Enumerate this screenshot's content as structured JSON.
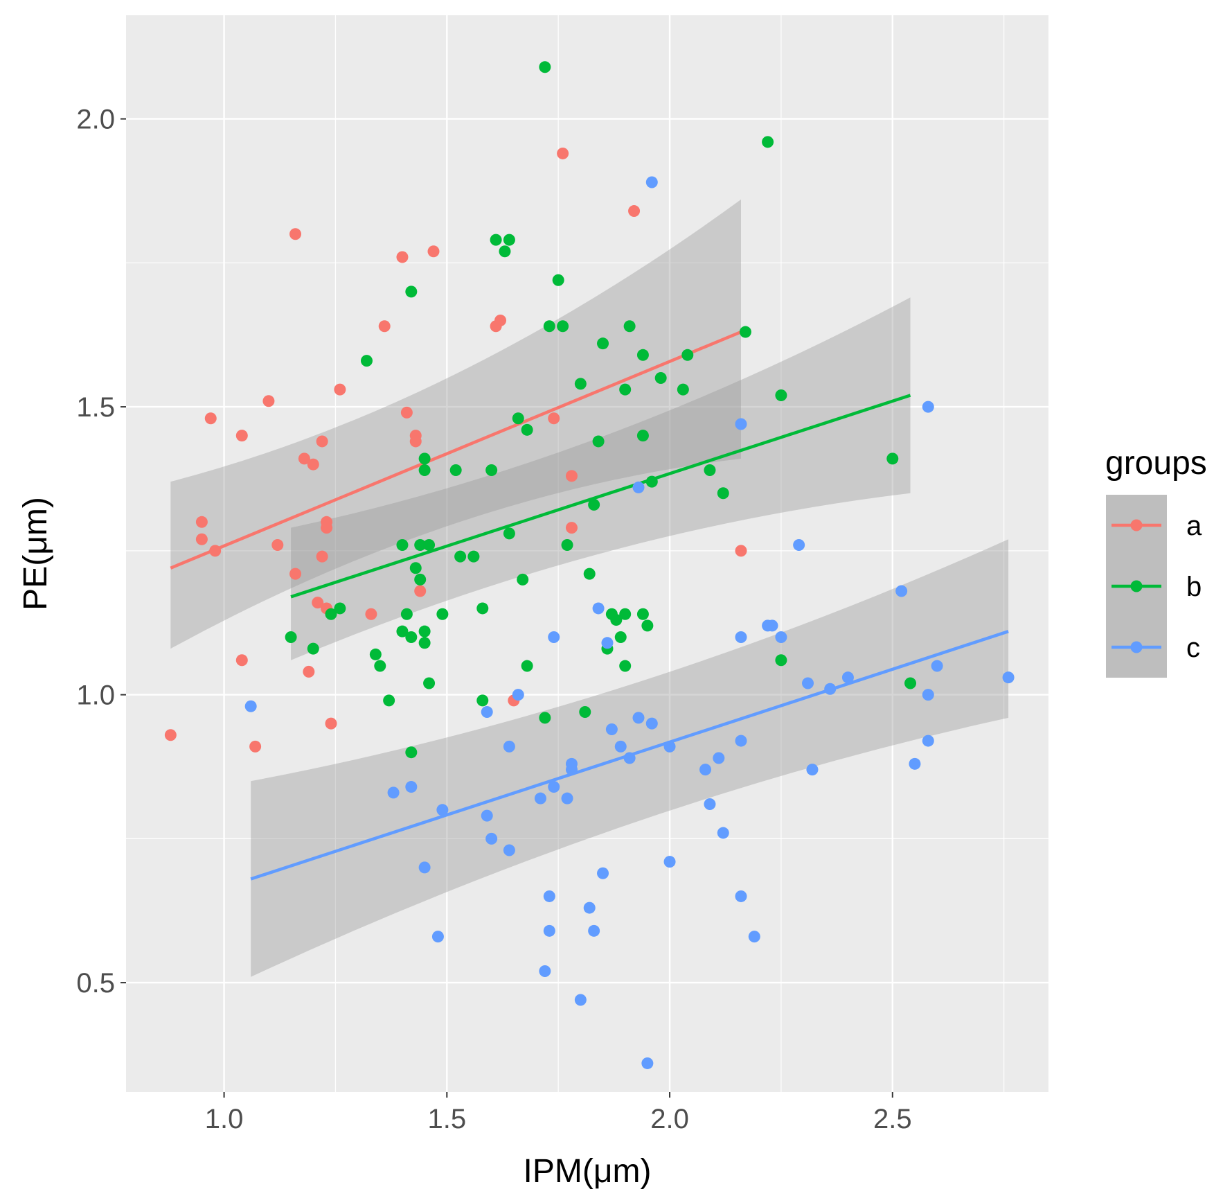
{
  "chart_data": {
    "type": "scatter",
    "title": "",
    "xlabel": "IPM(μm)",
    "ylabel": "PE(μm)",
    "xlim": [
      0.78,
      2.85
    ],
    "ylim": [
      0.31,
      2.18
    ],
    "xticks": [
      1.0,
      1.5,
      2.0,
      2.5
    ],
    "xtick_labels": [
      "1.0",
      "1.5",
      "2.0",
      "2.5"
    ],
    "yticks": [
      0.5,
      1.0,
      1.5,
      2.0
    ],
    "ytick_labels": [
      "0.5",
      "1.0",
      "1.5",
      "2.0"
    ],
    "grid": true,
    "legend": {
      "title": "groups",
      "position": "right"
    },
    "series": [
      {
        "name": "a",
        "color": "#F8766D",
        "points": [
          [
            0.88,
            0.93
          ],
          [
            0.95,
            1.3
          ],
          [
            0.95,
            1.27
          ],
          [
            0.97,
            1.48
          ],
          [
            0.98,
            1.25
          ],
          [
            1.04,
            1.45
          ],
          [
            1.04,
            1.06
          ],
          [
            1.07,
            0.91
          ],
          [
            1.1,
            1.51
          ],
          [
            1.12,
            1.26
          ],
          [
            1.16,
            1.8
          ],
          [
            1.16,
            1.21
          ],
          [
            1.18,
            1.41
          ],
          [
            1.19,
            1.04
          ],
          [
            1.2,
            1.4
          ],
          [
            1.21,
            1.16
          ],
          [
            1.22,
            1.44
          ],
          [
            1.22,
            1.24
          ],
          [
            1.23,
            1.3
          ],
          [
            1.23,
            1.29
          ],
          [
            1.23,
            1.15
          ],
          [
            1.24,
            0.95
          ],
          [
            1.26,
            1.53
          ],
          [
            1.33,
            1.14
          ],
          [
            1.36,
            1.64
          ],
          [
            1.4,
            1.76
          ],
          [
            1.41,
            1.49
          ],
          [
            1.43,
            1.45
          ],
          [
            1.43,
            1.44
          ],
          [
            1.44,
            1.18
          ],
          [
            1.47,
            1.77
          ],
          [
            1.61,
            1.64
          ],
          [
            1.62,
            1.65
          ],
          [
            1.65,
            0.99
          ],
          [
            1.74,
            1.48
          ],
          [
            1.76,
            1.94
          ],
          [
            1.78,
            1.38
          ],
          [
            1.78,
            1.29
          ],
          [
            1.92,
            1.84
          ],
          [
            2.16,
            1.25
          ]
        ],
        "fit": {
          "x": [
            0.88,
            2.16
          ],
          "y": [
            1.22,
            1.63
          ],
          "ci_lower": [
            1.08,
            1.41
          ],
          "ci_upper": [
            1.37,
            1.86
          ]
        }
      },
      {
        "name": "b",
        "color": "#00BA38",
        "points": [
          [
            1.15,
            1.1
          ],
          [
            1.2,
            1.08
          ],
          [
            1.24,
            1.14
          ],
          [
            1.26,
            1.15
          ],
          [
            1.32,
            1.58
          ],
          [
            1.34,
            1.07
          ],
          [
            1.35,
            1.05
          ],
          [
            1.37,
            0.99
          ],
          [
            1.4,
            1.26
          ],
          [
            1.4,
            1.11
          ],
          [
            1.41,
            1.14
          ],
          [
            1.42,
            1.7
          ],
          [
            1.42,
            1.1
          ],
          [
            1.42,
            0.9
          ],
          [
            1.43,
            1.22
          ],
          [
            1.44,
            1.26
          ],
          [
            1.44,
            1.2
          ],
          [
            1.45,
            1.41
          ],
          [
            1.45,
            1.39
          ],
          [
            1.45,
            1.11
          ],
          [
            1.45,
            1.09
          ],
          [
            1.46,
            1.26
          ],
          [
            1.46,
            1.02
          ],
          [
            1.49,
            1.14
          ],
          [
            1.52,
            1.39
          ],
          [
            1.53,
            1.24
          ],
          [
            1.56,
            1.24
          ],
          [
            1.58,
            1.15
          ],
          [
            1.58,
            0.99
          ],
          [
            1.6,
            1.39
          ],
          [
            1.61,
            1.79
          ],
          [
            1.63,
            1.77
          ],
          [
            1.64,
            1.79
          ],
          [
            1.64,
            1.28
          ],
          [
            1.66,
            1.48
          ],
          [
            1.67,
            1.2
          ],
          [
            1.68,
            1.46
          ],
          [
            1.68,
            1.05
          ],
          [
            1.72,
            2.09
          ],
          [
            1.72,
            0.96
          ],
          [
            1.73,
            1.64
          ],
          [
            1.75,
            1.72
          ],
          [
            1.76,
            1.64
          ],
          [
            1.77,
            1.26
          ],
          [
            1.8,
            1.54
          ],
          [
            1.81,
            0.97
          ],
          [
            1.82,
            1.21
          ],
          [
            1.83,
            1.33
          ],
          [
            1.84,
            1.44
          ],
          [
            1.85,
            1.61
          ],
          [
            1.86,
            1.08
          ],
          [
            1.87,
            1.14
          ],
          [
            1.88,
            1.13
          ],
          [
            1.89,
            1.1
          ],
          [
            1.9,
            1.53
          ],
          [
            1.9,
            1.14
          ],
          [
            1.9,
            1.05
          ],
          [
            1.91,
            1.64
          ],
          [
            1.94,
            1.59
          ],
          [
            1.94,
            1.45
          ],
          [
            1.94,
            1.14
          ],
          [
            1.95,
            1.12
          ],
          [
            1.96,
            1.37
          ],
          [
            1.98,
            1.55
          ],
          [
            2.03,
            1.53
          ],
          [
            2.04,
            1.59
          ],
          [
            2.09,
            1.39
          ],
          [
            2.12,
            1.35
          ],
          [
            2.17,
            1.63
          ],
          [
            2.22,
            1.96
          ],
          [
            2.25,
            1.52
          ],
          [
            2.25,
            1.06
          ],
          [
            2.5,
            1.41
          ],
          [
            2.54,
            1.02
          ]
        ],
        "fit": {
          "x": [
            1.15,
            2.54
          ],
          "y": [
            1.17,
            1.52
          ],
          "ci_lower": [
            1.06,
            1.35
          ],
          "ci_upper": [
            1.29,
            1.69
          ]
        }
      },
      {
        "name": "c",
        "color": "#619CFF",
        "points": [
          [
            1.06,
            0.98
          ],
          [
            1.38,
            0.83
          ],
          [
            1.42,
            0.84
          ],
          [
            1.45,
            0.7
          ],
          [
            1.48,
            0.58
          ],
          [
            1.49,
            0.8
          ],
          [
            1.59,
            0.97
          ],
          [
            1.59,
            0.79
          ],
          [
            1.6,
            0.75
          ],
          [
            1.64,
            0.91
          ],
          [
            1.64,
            0.73
          ],
          [
            1.66,
            1.0
          ],
          [
            1.71,
            0.82
          ],
          [
            1.72,
            0.52
          ],
          [
            1.73,
            0.65
          ],
          [
            1.73,
            0.59
          ],
          [
            1.74,
            0.84
          ],
          [
            1.74,
            1.1
          ],
          [
            1.77,
            0.82
          ],
          [
            1.78,
            0.88
          ],
          [
            1.78,
            0.87
          ],
          [
            1.8,
            0.47
          ],
          [
            1.82,
            0.63
          ],
          [
            1.83,
            0.59
          ],
          [
            1.84,
            1.15
          ],
          [
            1.85,
            0.69
          ],
          [
            1.86,
            1.09
          ],
          [
            1.87,
            0.94
          ],
          [
            1.89,
            0.91
          ],
          [
            1.91,
            0.89
          ],
          [
            1.93,
            1.36
          ],
          [
            1.93,
            0.96
          ],
          [
            1.95,
            0.36
          ],
          [
            1.96,
            1.89
          ],
          [
            1.96,
            0.95
          ],
          [
            2.0,
            0.91
          ],
          [
            2.0,
            0.71
          ],
          [
            2.08,
            0.87
          ],
          [
            2.09,
            0.81
          ],
          [
            2.11,
            0.89
          ],
          [
            2.12,
            0.76
          ],
          [
            2.16,
            1.47
          ],
          [
            2.16,
            1.1
          ],
          [
            2.16,
            0.92
          ],
          [
            2.16,
            0.65
          ],
          [
            2.19,
            0.58
          ],
          [
            2.22,
            1.12
          ],
          [
            2.23,
            1.12
          ],
          [
            2.25,
            1.1
          ],
          [
            2.29,
            1.26
          ],
          [
            2.31,
            1.02
          ],
          [
            2.32,
            0.87
          ],
          [
            2.36,
            1.01
          ],
          [
            2.4,
            1.03
          ],
          [
            2.52,
            1.18
          ],
          [
            2.55,
            0.88
          ],
          [
            2.58,
            1.5
          ],
          [
            2.58,
            1.0
          ],
          [
            2.58,
            0.92
          ],
          [
            2.6,
            1.05
          ],
          [
            2.76,
            1.03
          ]
        ],
        "fit": {
          "x": [
            1.06,
            2.76
          ],
          "y": [
            0.68,
            1.11
          ],
          "ci_lower": [
            0.51,
            0.96
          ],
          "ci_upper": [
            0.85,
            1.27
          ]
        }
      }
    ]
  }
}
